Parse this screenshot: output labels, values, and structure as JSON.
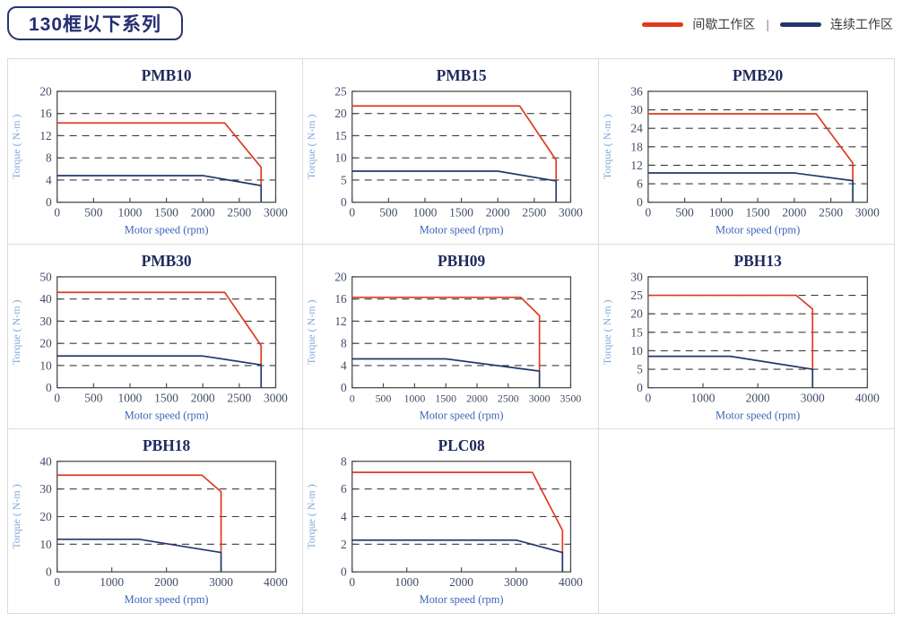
{
  "header": {
    "title": "130框以下系列",
    "legend_separator": "|",
    "legend": [
      {
        "name": "intermittent-zone",
        "label": "间歇工作区",
        "color": "#DF3A1F"
      },
      {
        "name": "continuous-zone",
        "label": "连续工作区",
        "color": "#24376B"
      }
    ]
  },
  "colors": {
    "intermittent": "#DF3A1F",
    "continuous": "#24376B",
    "plot_border": "#4D4D4D",
    "gridline": "#3C3C3C",
    "tick_text": "#414D68",
    "chart_title": "#1E2A5E",
    "ylabel_text": "#7FA8DC",
    "xlabel_text": "#3A66B8",
    "panel_border": "#DCDCDC"
  },
  "axis": {
    "xlabel": "Motor speed (rpm)",
    "ylabel": "Torque ( N-m )"
  },
  "chart_data": [
    {
      "type": "line",
      "title": "PMB10",
      "xlabel": "Motor speed (rpm)",
      "ylabel": "Torque ( N-m )",
      "xlim": [
        0,
        3000
      ],
      "ylim": [
        0,
        20
      ],
      "xticks": [
        0,
        500,
        1000,
        1500,
        2000,
        2500,
        3000
      ],
      "yticks": [
        0,
        4,
        8,
        12,
        16,
        20
      ],
      "grid": "horizontal-dashed",
      "legend_position": "none",
      "series": [
        {
          "name": "间歇工作区",
          "color": "#DF3A1F",
          "points": [
            [
              0,
              14.3
            ],
            [
              2300,
              14.3
            ],
            [
              2800,
              6.3
            ],
            [
              2800,
              3.0
            ]
          ]
        },
        {
          "name": "连续工作区",
          "color": "#24376B",
          "points": [
            [
              0,
              4.8
            ],
            [
              2000,
              4.8
            ],
            [
              2800,
              3.0
            ],
            [
              2800,
              0
            ]
          ]
        }
      ]
    },
    {
      "type": "line",
      "title": "PMB15",
      "xlabel": "Motor speed (rpm)",
      "ylabel": "Torque ( N-m )",
      "xlim": [
        0,
        3000
      ],
      "ylim": [
        0,
        25
      ],
      "xticks": [
        0,
        500,
        1000,
        1500,
        2000,
        2500,
        3000
      ],
      "yticks": [
        0,
        5,
        10,
        15,
        20,
        25
      ],
      "grid": "horizontal-dashed",
      "legend_position": "none",
      "series": [
        {
          "name": "间歇工作区",
          "color": "#DF3A1F",
          "points": [
            [
              0,
              21.7
            ],
            [
              2300,
              21.7
            ],
            [
              2800,
              9.5
            ],
            [
              2800,
              4.8
            ]
          ]
        },
        {
          "name": "连续工作区",
          "color": "#24376B",
          "points": [
            [
              0,
              7.0
            ],
            [
              2000,
              7.0
            ],
            [
              2800,
              4.8
            ],
            [
              2800,
              0
            ]
          ]
        }
      ]
    },
    {
      "type": "line",
      "title": "PMB20",
      "xlabel": "Motor speed (rpm)",
      "ylabel": "Torque ( N-m )",
      "xlim": [
        0,
        3000
      ],
      "ylim": [
        0,
        36
      ],
      "xticks": [
        0,
        500,
        1000,
        1500,
        2000,
        2500,
        3000
      ],
      "yticks": [
        0,
        6,
        12,
        18,
        24,
        30,
        36
      ],
      "grid": "horizontal-dashed",
      "legend_position": "none",
      "series": [
        {
          "name": "间歇工作区",
          "color": "#DF3A1F",
          "points": [
            [
              0,
              28.7
            ],
            [
              2300,
              28.7
            ],
            [
              2800,
              12.7
            ],
            [
              2800,
              7.0
            ]
          ]
        },
        {
          "name": "连续工作区",
          "color": "#24376B",
          "points": [
            [
              0,
              9.5
            ],
            [
              2000,
              9.5
            ],
            [
              2800,
              7.0
            ],
            [
              2800,
              0
            ]
          ]
        }
      ]
    },
    {
      "type": "line",
      "title": "PMB30",
      "xlabel": "Motor speed (rpm)",
      "ylabel": "Torque ( N-m )",
      "xlim": [
        0,
        3000
      ],
      "ylim": [
        0,
        50
      ],
      "xticks": [
        0,
        500,
        1000,
        1500,
        2000,
        2500,
        3000
      ],
      "yticks": [
        0,
        10,
        20,
        30,
        40,
        50
      ],
      "grid": "horizontal-dashed",
      "legend_position": "none",
      "series": [
        {
          "name": "间歇工作区",
          "color": "#DF3A1F",
          "points": [
            [
              0,
              43
            ],
            [
              2300,
              43
            ],
            [
              2800,
              19
            ],
            [
              2800,
              10.3
            ]
          ]
        },
        {
          "name": "连续工作区",
          "color": "#24376B",
          "points": [
            [
              0,
              14.3
            ],
            [
              2000,
              14.3
            ],
            [
              2800,
              10.3
            ],
            [
              2800,
              0
            ]
          ]
        }
      ]
    },
    {
      "type": "line",
      "title": "PBH09",
      "xlabel": "Motor speed (rpm)",
      "ylabel": "Torque ( N-m )",
      "xlim": [
        0,
        3500
      ],
      "ylim": [
        0,
        20
      ],
      "xticks": [
        0,
        500,
        1000,
        1500,
        2000,
        2500,
        3000,
        3500
      ],
      "yticks": [
        0,
        4,
        8,
        12,
        16,
        20
      ],
      "grid": "horizontal-dashed",
      "legend_position": "none",
      "series": [
        {
          "name": "间歇工作区",
          "color": "#DF3A1F",
          "points": [
            [
              0,
              16.3
            ],
            [
              2700,
              16.3
            ],
            [
              3000,
              13.0
            ],
            [
              3000,
              3.0
            ]
          ]
        },
        {
          "name": "连续工作区",
          "color": "#24376B",
          "points": [
            [
              0,
              5.2
            ],
            [
              1500,
              5.2
            ],
            [
              3000,
              3.0
            ],
            [
              3000,
              0
            ]
          ]
        }
      ]
    },
    {
      "type": "line",
      "title": "PBH13",
      "xlabel": "Motor speed (rpm)",
      "ylabel": "Torque ( N-m )",
      "xlim": [
        0,
        4000
      ],
      "ylim": [
        0,
        30
      ],
      "xticks": [
        0,
        1000,
        2000,
        3000,
        4000
      ],
      "yticks": [
        0,
        5,
        10,
        15,
        20,
        25,
        30
      ],
      "grid": "horizontal-dashed",
      "legend_position": "none",
      "series": [
        {
          "name": "间歇工作区",
          "color": "#DF3A1F",
          "points": [
            [
              0,
              25
            ],
            [
              2700,
              25
            ],
            [
              3000,
              21.3
            ],
            [
              3000,
              5.0
            ]
          ]
        },
        {
          "name": "连续工作区",
          "color": "#24376B",
          "points": [
            [
              0,
              8.5
            ],
            [
              1500,
              8.5
            ],
            [
              3000,
              5.0
            ],
            [
              3000,
              0
            ]
          ]
        }
      ]
    },
    {
      "type": "line",
      "title": "PBH18",
      "xlabel": "Motor speed (rpm)",
      "ylabel": "Torque ( N-m )",
      "xlim": [
        0,
        4000
      ],
      "ylim": [
        0,
        40
      ],
      "xticks": [
        0,
        1000,
        2000,
        3000,
        4000
      ],
      "yticks": [
        0,
        10,
        20,
        30,
        40
      ],
      "grid": "horizontal-dashed",
      "legend_position": "none",
      "series": [
        {
          "name": "间歇工作区",
          "color": "#DF3A1F",
          "points": [
            [
              0,
              35
            ],
            [
              2650,
              35
            ],
            [
              3000,
              29
            ],
            [
              3000,
              7.0
            ]
          ]
        },
        {
          "name": "连续工作区",
          "color": "#24376B",
          "points": [
            [
              0,
              11.8
            ],
            [
              1500,
              11.8
            ],
            [
              3000,
              7.0
            ],
            [
              3000,
              0
            ]
          ]
        }
      ]
    },
    {
      "type": "line",
      "title": "PLC08",
      "xlabel": "Motor speed (rpm)",
      "ylabel": "Torque ( N-m )",
      "xlim": [
        0,
        4000
      ],
      "ylim": [
        0,
        8
      ],
      "xticks": [
        0,
        1000,
        2000,
        3000,
        4000
      ],
      "yticks": [
        0,
        2,
        4,
        6,
        8
      ],
      "grid": "horizontal-dashed",
      "legend_position": "none",
      "series": [
        {
          "name": "间歇工作区",
          "color": "#DF3A1F",
          "points": [
            [
              0,
              7.2
            ],
            [
              3300,
              7.2
            ],
            [
              3850,
              3.0
            ],
            [
              3850,
              1.4
            ]
          ]
        },
        {
          "name": "连续工作区",
          "color": "#24376B",
          "points": [
            [
              0,
              2.3
            ],
            [
              3000,
              2.3
            ],
            [
              3850,
              1.4
            ],
            [
              3850,
              0
            ]
          ]
        }
      ]
    }
  ]
}
